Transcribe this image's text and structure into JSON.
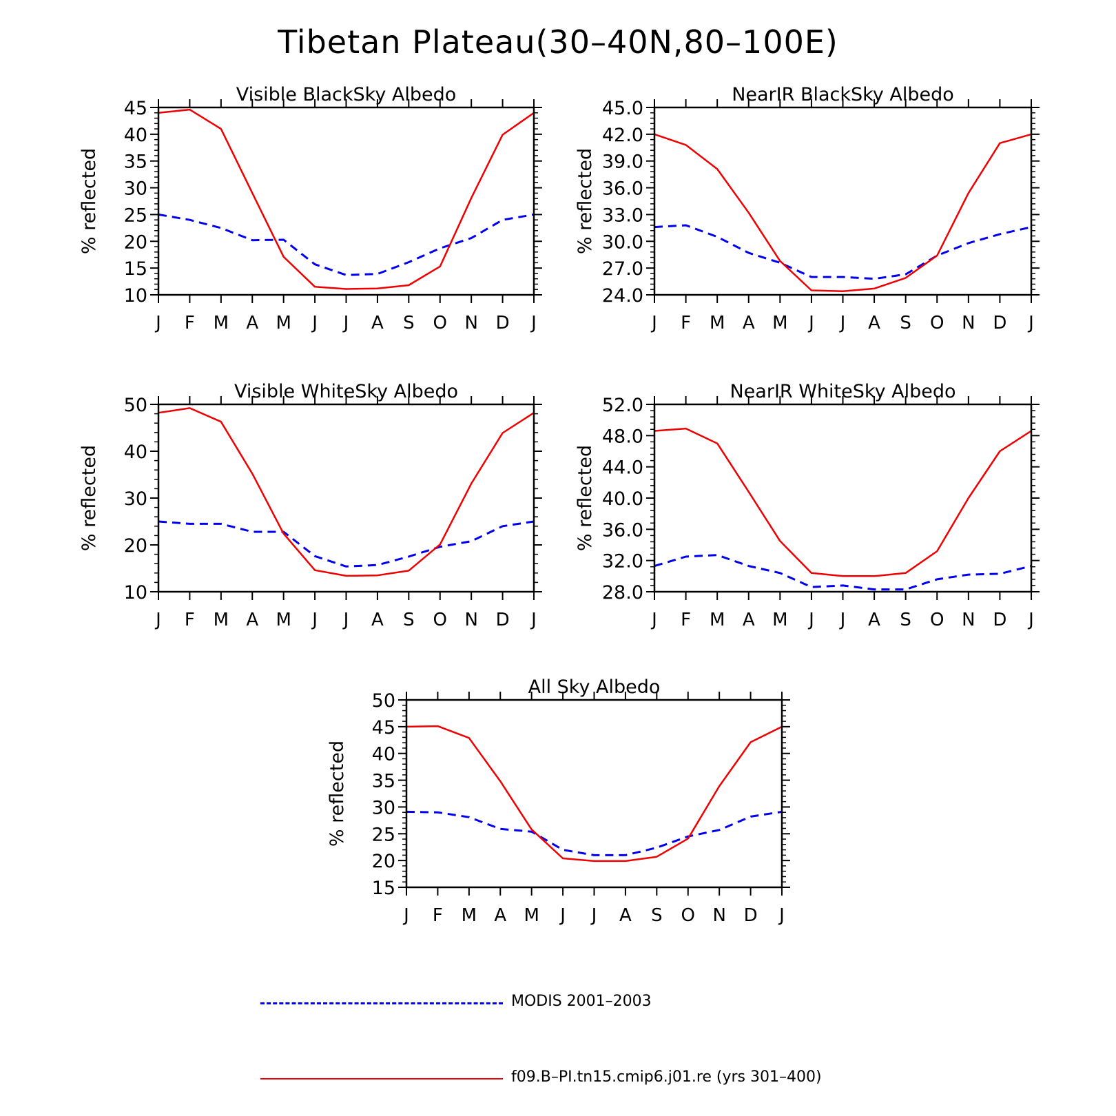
{
  "figure": {
    "title": "Tibetan Plateau(30–40N,80–100E)"
  },
  "legend": {
    "items": [
      {
        "label": "MODIS 2001–2003",
        "color": "#0000ee",
        "style": "dashed"
      },
      {
        "label": "f09.B–PI.tn15.cmip6.j01.re (yrs 301–400)",
        "color": "#ee0000",
        "style": "solid"
      }
    ]
  },
  "chart_data": [
    {
      "type": "line",
      "title": "Visible BlackSky Albedo",
      "ylabel": "% reflected",
      "categories": [
        "J",
        "F",
        "M",
        "A",
        "M",
        "J",
        "J",
        "A",
        "S",
        "O",
        "N",
        "D",
        "J"
      ],
      "ylim": [
        10,
        45
      ],
      "yticks": [
        "10",
        "15",
        "20",
        "25",
        "30",
        "35",
        "40",
        "45"
      ],
      "grid": false,
      "series": [
        {
          "name": "MODIS 2001–2003",
          "color": "#0000ee",
          "style": "dashed",
          "values": [
            25.0,
            24.0,
            22.5,
            20.2,
            20.3,
            15.7,
            13.7,
            13.9,
            16.1,
            18.7,
            20.6,
            24.0,
            25.0
          ]
        },
        {
          "name": "f09.B–PI.tn15.cmip6.j01.re (yrs 301–400)",
          "color": "#ee0000",
          "style": "solid",
          "values": [
            44.0,
            44.6,
            41.0,
            29.0,
            17.1,
            11.5,
            11.1,
            11.2,
            11.8,
            15.3,
            28.1,
            39.9,
            44.0
          ]
        }
      ]
    },
    {
      "type": "line",
      "title": "NearIR BlackSky Albedo",
      "ylabel": "% reflected",
      "categories": [
        "J",
        "F",
        "M",
        "A",
        "M",
        "J",
        "J",
        "A",
        "S",
        "O",
        "N",
        "D",
        "J"
      ],
      "ylim": [
        24.0,
        45.0
      ],
      "yticks": [
        "24.0",
        "27.0",
        "30.0",
        "33.0",
        "36.0",
        "39.0",
        "42.0",
        "45.0"
      ],
      "grid": false,
      "series": [
        {
          "name": "MODIS 2001–2003",
          "color": "#0000ee",
          "style": "dashed",
          "values": [
            31.6,
            31.8,
            30.5,
            28.7,
            27.6,
            26.0,
            26.0,
            25.8,
            26.3,
            28.4,
            29.8,
            30.8,
            31.6
          ]
        },
        {
          "name": "f09.B–PI.tn15.cmip6.j01.re (yrs 301–400)",
          "color": "#ee0000",
          "style": "solid",
          "values": [
            42.0,
            40.8,
            38.1,
            33.2,
            27.8,
            24.5,
            24.4,
            24.7,
            25.9,
            28.4,
            35.4,
            41.0,
            42.0
          ]
        }
      ]
    },
    {
      "type": "line",
      "title": "Visible WhiteSky Albedo",
      "ylabel": "% reflected",
      "categories": [
        "J",
        "F",
        "M",
        "A",
        "M",
        "J",
        "J",
        "A",
        "S",
        "O",
        "N",
        "D",
        "J"
      ],
      "ylim": [
        10,
        50
      ],
      "yticks": [
        "10",
        "20",
        "30",
        "40",
        "50"
      ],
      "grid": false,
      "series": [
        {
          "name": "MODIS 2001–2003",
          "color": "#0000ee",
          "style": "dashed",
          "values": [
            25.0,
            24.5,
            24.5,
            22.8,
            22.8,
            17.6,
            15.4,
            15.7,
            17.5,
            19.6,
            20.8,
            24.0,
            25.0
          ]
        },
        {
          "name": "f09.B–PI.tn15.cmip6.j01.re (yrs 301–400)",
          "color": "#ee0000",
          "style": "solid",
          "values": [
            48.2,
            49.2,
            46.3,
            35.2,
            22.4,
            14.6,
            13.4,
            13.5,
            14.5,
            20.1,
            33.1,
            43.9,
            48.2
          ]
        }
      ]
    },
    {
      "type": "line",
      "title": "NearIR WhiteSky Albedo",
      "ylabel": "% reflected",
      "categories": [
        "J",
        "F",
        "M",
        "A",
        "M",
        "J",
        "J",
        "A",
        "S",
        "O",
        "N",
        "D",
        "J"
      ],
      "ylim": [
        28.0,
        52.0
      ],
      "yticks": [
        "28.0",
        "32.0",
        "36.0",
        "40.0",
        "44.0",
        "48.0",
        "52.0"
      ],
      "grid": false,
      "series": [
        {
          "name": "MODIS 2001–2003",
          "color": "#0000ee",
          "style": "dashed",
          "values": [
            31.3,
            32.5,
            32.7,
            31.3,
            30.4,
            28.6,
            28.8,
            28.3,
            28.3,
            29.6,
            30.2,
            30.3,
            31.3
          ]
        },
        {
          "name": "f09.B–PI.tn15.cmip6.j01.re (yrs 301–400)",
          "color": "#ee0000",
          "style": "solid",
          "values": [
            48.6,
            48.9,
            47.0,
            40.8,
            34.5,
            30.4,
            30.0,
            30.0,
            30.4,
            33.2,
            40.0,
            46.0,
            48.6
          ]
        }
      ]
    },
    {
      "type": "line",
      "title": "All Sky Albedo",
      "ylabel": "% reflected",
      "categories": [
        "J",
        "F",
        "M",
        "A",
        "M",
        "J",
        "J",
        "A",
        "S",
        "O",
        "N",
        "D",
        "J"
      ],
      "ylim": [
        15,
        50
      ],
      "yticks": [
        "15",
        "20",
        "25",
        "30",
        "35",
        "40",
        "45",
        "50"
      ],
      "grid": false,
      "series": [
        {
          "name": "MODIS 2001–2003",
          "color": "#0000ee",
          "style": "dashed",
          "values": [
            29.1,
            29.0,
            28.1,
            25.9,
            25.4,
            22.0,
            21.0,
            21.0,
            22.4,
            24.5,
            25.7,
            28.2,
            29.1
          ]
        },
        {
          "name": "f09.B–PI.tn15.cmip6.j01.re (yrs 301–400)",
          "color": "#ee0000",
          "style": "solid",
          "values": [
            45.0,
            45.1,
            42.9,
            34.8,
            25.8,
            20.4,
            19.9,
            19.9,
            20.7,
            24.1,
            33.9,
            42.1,
            45.0
          ]
        }
      ]
    }
  ]
}
